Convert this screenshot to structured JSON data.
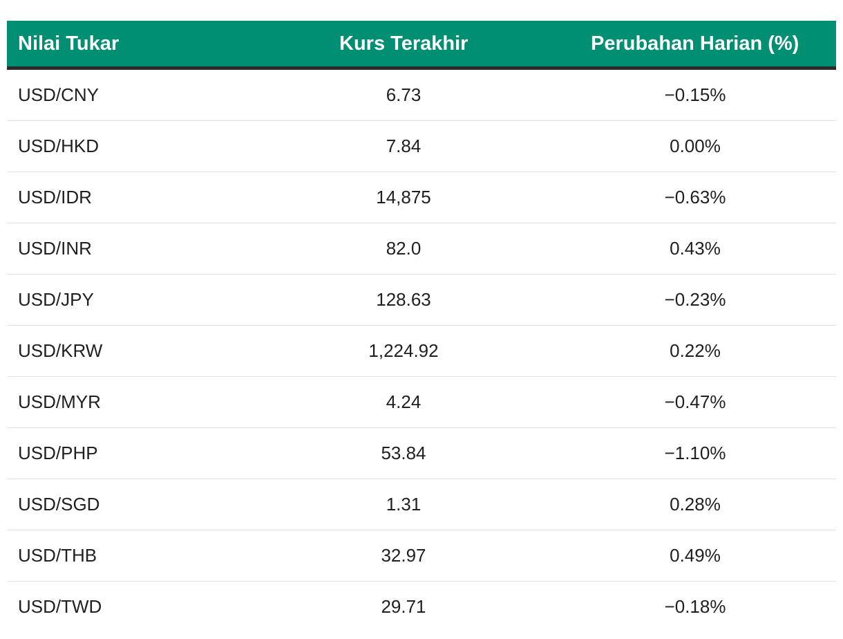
{
  "table": {
    "headers": {
      "pair": "Nilai Tukar",
      "rate": "Kurs Terakhir",
      "change": "Perubahan Harian (%)"
    },
    "header_color": "#008f72",
    "rows": [
      {
        "pair": "USD/CNY",
        "rate": "6.73",
        "change": "−0.15%"
      },
      {
        "pair": "USD/HKD",
        "rate": "7.84",
        "change": "0.00%"
      },
      {
        "pair": "USD/IDR",
        "rate": "14,875",
        "change": "−0.63%"
      },
      {
        "pair": "USD/INR",
        "rate": "82.0",
        "change": "0.43%"
      },
      {
        "pair": "USD/JPY",
        "rate": "128.63",
        "change": "−0.23%"
      },
      {
        "pair": "USD/KRW",
        "rate": "1,224.92",
        "change": "0.22%"
      },
      {
        "pair": "USD/MYR",
        "rate": "4.24",
        "change": "−0.47%"
      },
      {
        "pair": "USD/PHP",
        "rate": "53.84",
        "change": "−1.10%"
      },
      {
        "pair": "USD/SGD",
        "rate": "1.31",
        "change": "0.28%"
      },
      {
        "pair": "USD/THB",
        "rate": "32.97",
        "change": "0.49%"
      },
      {
        "pair": "USD/TWD",
        "rate": "29.71",
        "change": "−0.18%"
      }
    ]
  }
}
